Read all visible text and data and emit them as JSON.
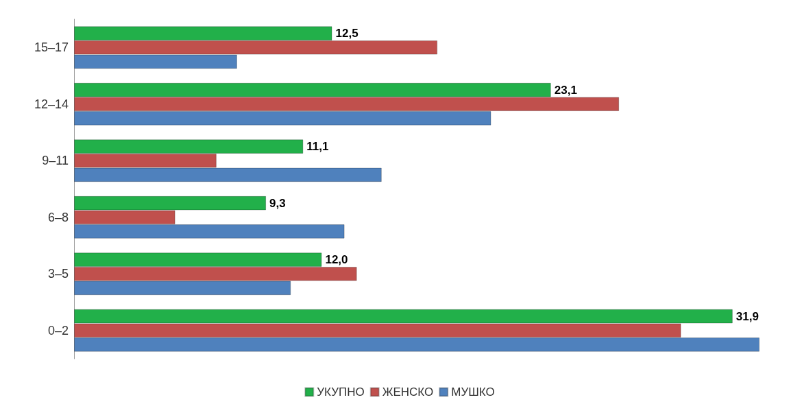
{
  "chart_data": {
    "type": "bar",
    "orientation": "horizontal",
    "categories": [
      "15–17",
      "12–14",
      "9–11",
      "6–8",
      "3–5",
      "0–2"
    ],
    "series": [
      {
        "name": "УКУПНО",
        "color": "#22b04a",
        "values": [
          12.5,
          23.1,
          11.1,
          9.3,
          12.0,
          31.9
        ],
        "value_labels": [
          "12,5",
          "23,1",
          "11,1",
          "9,3",
          "12,0",
          "31,9"
        ]
      },
      {
        "name": "ЖЕНСКО",
        "color": "#c0504d",
        "values": [
          17.6,
          26.4,
          6.9,
          4.9,
          13.7,
          29.4
        ]
      },
      {
        "name": "МУШКО",
        "color": "#4f81bd",
        "values": [
          7.9,
          20.2,
          14.9,
          13.1,
          10.5,
          33.2
        ]
      }
    ],
    "legend": "bottom",
    "grid": false
  }
}
